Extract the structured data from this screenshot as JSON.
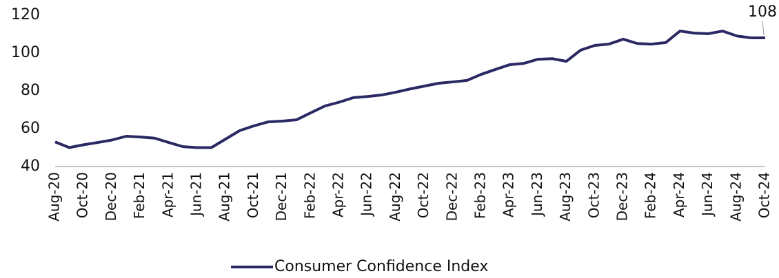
{
  "chart_data": {
    "type": "line",
    "categories": [
      "Aug-20",
      null,
      "Oct-20",
      null,
      "Dec-20",
      null,
      "Feb-21",
      null,
      "Apr-21",
      null,
      "Jun-21",
      null,
      "Aug-21",
      null,
      "Oct-21",
      null,
      "Dec-21",
      null,
      "Feb-22",
      null,
      "Apr-22",
      null,
      "Jun-22",
      null,
      "Aug-22",
      null,
      "Oct-22",
      null,
      "Dec-22",
      null,
      "Feb-23",
      null,
      "Apr-23",
      null,
      "Jun-23",
      null,
      "Aug-23",
      null,
      "Oct-23",
      null,
      "Dec-23",
      null,
      "Feb-24",
      null,
      "Apr-24",
      null,
      "Jun-24",
      null,
      "Aug-24",
      null,
      "Oct-24"
    ],
    "series": [
      {
        "name": "Consumer Confidence Index",
        "color": "#2b2963",
        "values": [
          53,
          50,
          51.5,
          52.7,
          54,
          56,
          55.6,
          55,
          52.7,
          50.5,
          50,
          50,
          54.5,
          59,
          61.5,
          63.6,
          64,
          64.7,
          68.4,
          72,
          74,
          76.4,
          77,
          77.8,
          79.3,
          81,
          82.5,
          84,
          84.7,
          85.5,
          88.7,
          91.3,
          93.8,
          94.5,
          96.7,
          97,
          95.6,
          101.5,
          104,
          104.7,
          107.3,
          105,
          104.7,
          105.5,
          111.6,
          110.5,
          110.2,
          111.6,
          109,
          108,
          108
        ]
      }
    ],
    "ylim": [
      40,
      120
    ],
    "yticks": [
      40,
      60,
      80,
      100,
      120
    ],
    "grid": false,
    "legend": "bottom",
    "last_value_label": true
  }
}
